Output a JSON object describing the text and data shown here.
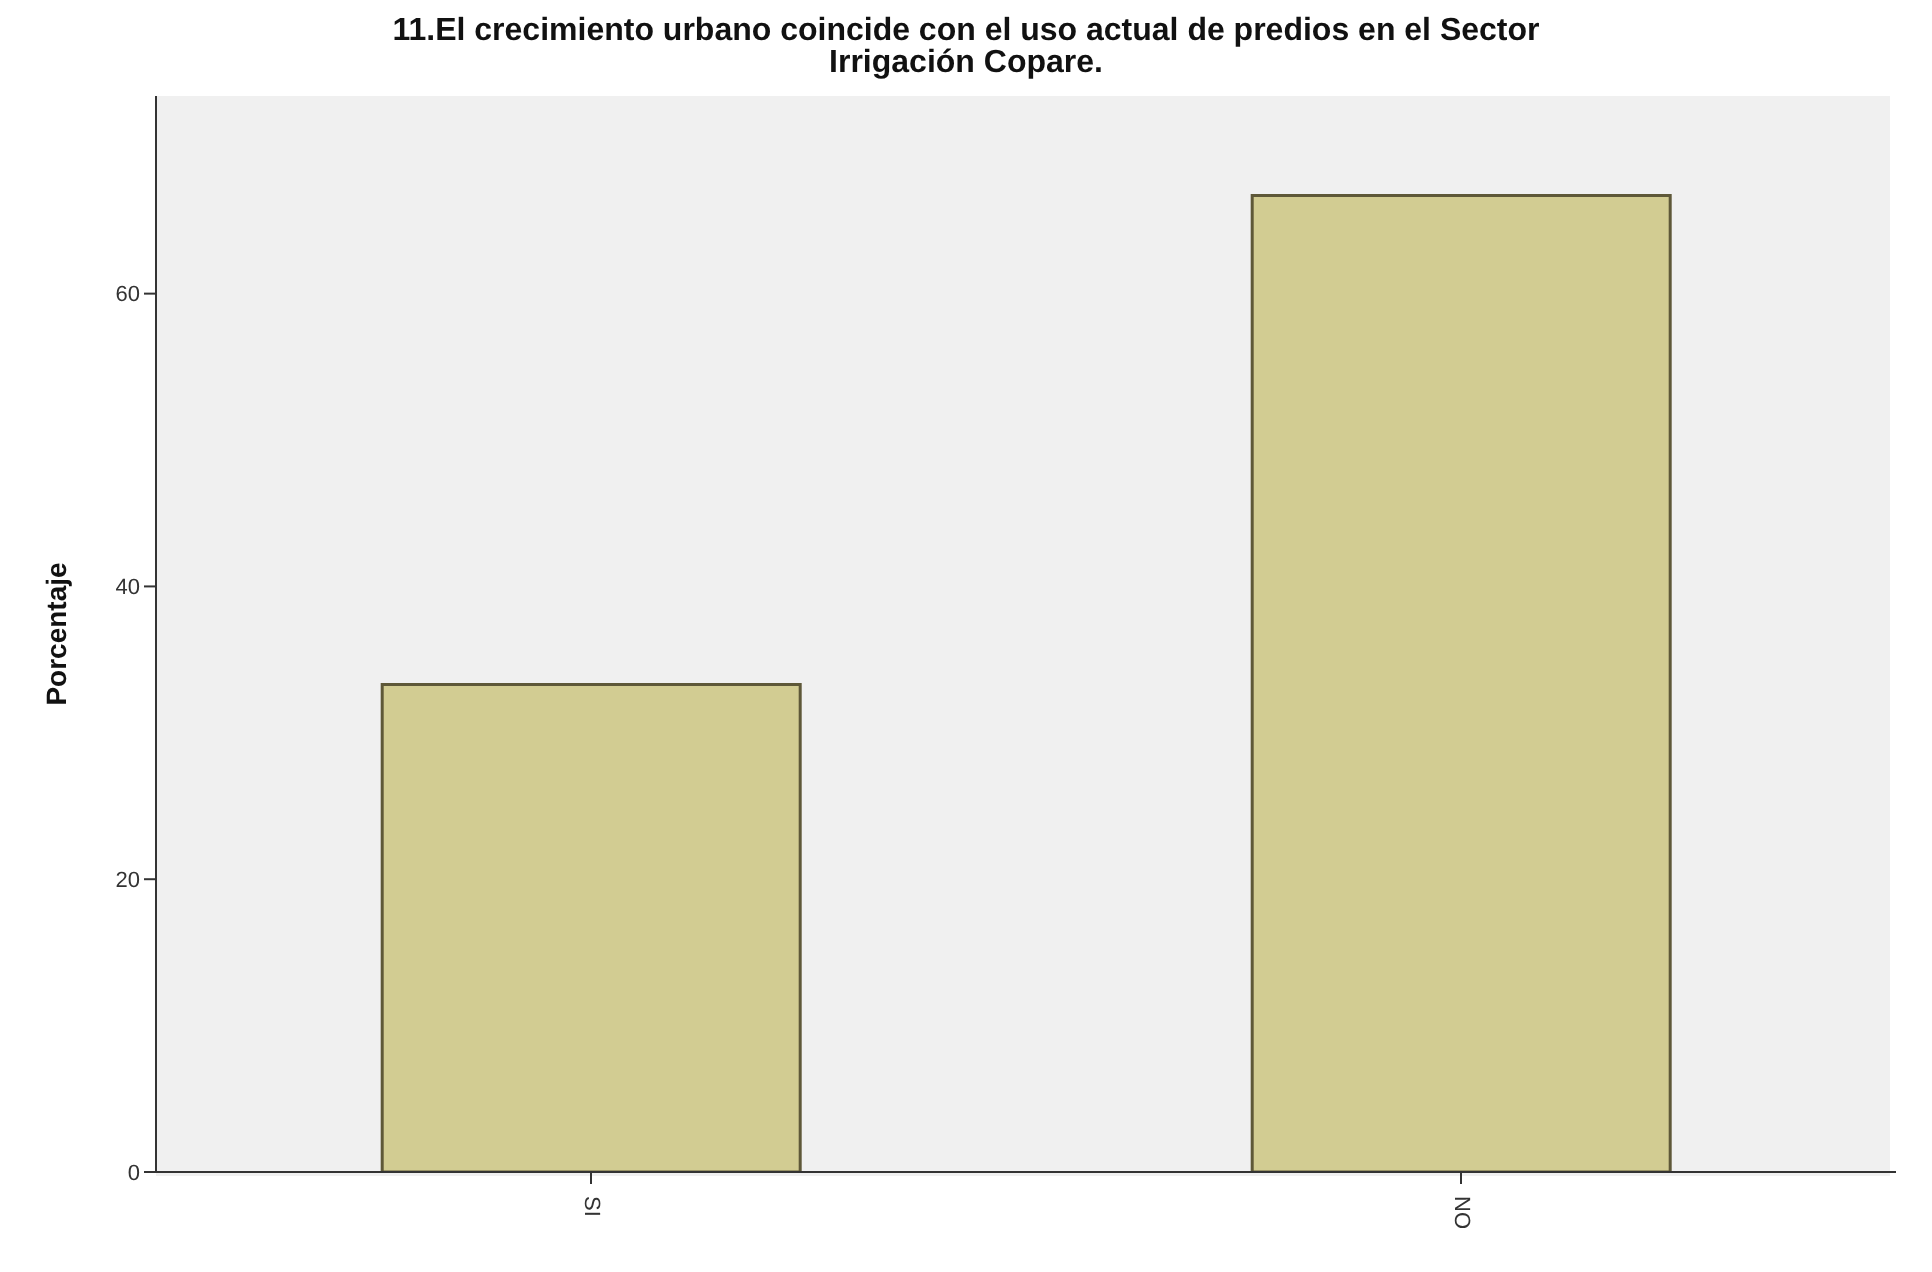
{
  "chart_data": {
    "type": "bar",
    "title": "11.El crecimiento urbano coincide con el uso actual de predios en el Sector Irrigación Copare.",
    "ylabel": "Porcentaje",
    "categories": [
      "SI",
      "NO"
    ],
    "values": [
      33.3,
      66.7
    ],
    "color": "#d2cc92",
    "ylim": [
      0,
      73.5
    ],
    "yticks": [
      0,
      20,
      40,
      60
    ],
    "grid": false
  }
}
